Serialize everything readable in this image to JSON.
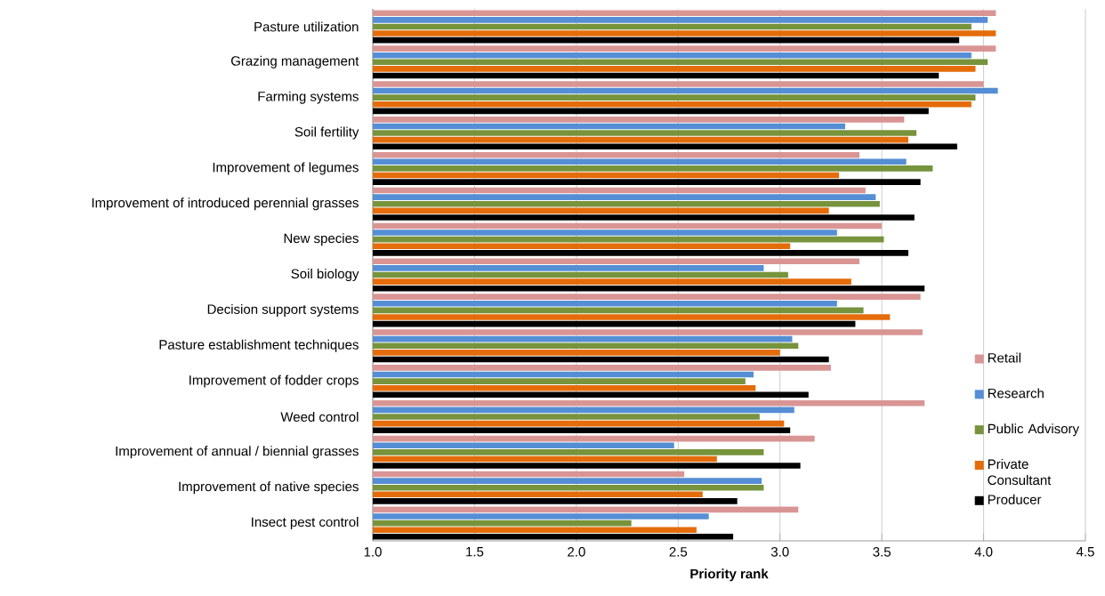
{
  "chart_data": {
    "type": "bar",
    "orientation": "horizontal",
    "xlabel": "Priority rank",
    "categories": [
      "Pasture utilization",
      "Grazing management",
      "Farming systems",
      "Soil fertility",
      "Improvement of legumes",
      "Improvement of introduced perennial grasses",
      "New species",
      "Soil biology",
      "Decision support systems",
      "Pasture establishment techniques",
      "Improvement of fodder crops",
      "Weed control",
      "Improvement of annual / biennial grasses",
      "Improvement of native species",
      "Insect pest control"
    ],
    "series": [
      {
        "name": "Retail",
        "color": "#d99594",
        "values": [
          4.06,
          4.06,
          4.0,
          3.61,
          3.39,
          3.42,
          3.5,
          3.39,
          3.69,
          3.7,
          3.25,
          3.71,
          3.17,
          2.53,
          3.09
        ]
      },
      {
        "name": "Research",
        "color": "#558ed5",
        "values": [
          4.02,
          3.94,
          4.07,
          3.32,
          3.62,
          3.47,
          3.28,
          2.92,
          3.28,
          3.06,
          2.87,
          3.07,
          2.48,
          2.91,
          2.65
        ]
      },
      {
        "name": "Public Advisory",
        "color": "#77933c",
        "values": [
          3.94,
          4.02,
          3.96,
          3.67,
          3.75,
          3.49,
          3.51,
          3.04,
          3.41,
          3.09,
          2.83,
          2.9,
          2.92,
          2.92,
          2.27
        ]
      },
      {
        "name": "Private Consultant",
        "color": "#e46c0a",
        "values": [
          4.06,
          3.96,
          3.94,
          3.63,
          3.29,
          3.24,
          3.05,
          3.35,
          3.54,
          3.0,
          2.88,
          3.02,
          2.69,
          2.62,
          2.59
        ]
      },
      {
        "name": "Producer",
        "color": "#000000",
        "values": [
          3.88,
          3.78,
          3.73,
          3.87,
          3.69,
          3.66,
          3.63,
          3.71,
          3.37,
          3.24,
          3.14,
          3.05,
          3.1,
          2.79,
          2.77
        ]
      }
    ],
    "xlim": [
      1.0,
      4.5
    ],
    "xticks": [
      {
        "value": 1.0,
        "label": "1.0"
      },
      {
        "value": 1.5,
        "label": "1.5"
      },
      {
        "value": 2.0,
        "label": "2.0"
      },
      {
        "value": 2.5,
        "label": "2.5"
      },
      {
        "value": 3.0,
        "label": "3.0"
      },
      {
        "value": 3.5,
        "label": "3.5"
      },
      {
        "value": 4.0,
        "label": "4.0"
      },
      {
        "value": 4.5,
        "label": "4.5"
      }
    ],
    "grid": "x",
    "legend": "bottom right"
  }
}
